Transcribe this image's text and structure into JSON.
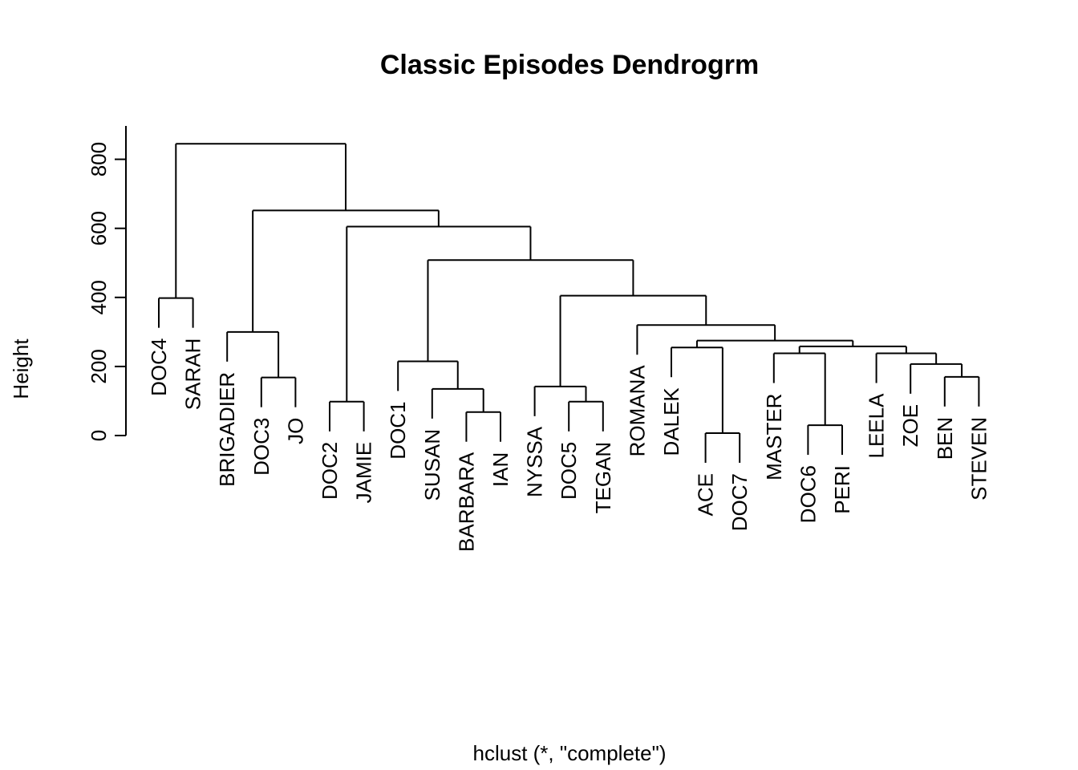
{
  "chart_data": {
    "type": "dendrogram",
    "title": "Classic Episodes Dendrogrm",
    "ylabel": "Height",
    "xlabel": "hclust (*, \"complete\")",
    "ylim": [
      0,
      900
    ],
    "yticks": [
      0,
      200,
      400,
      600,
      800
    ],
    "leaves": [
      "DOC4",
      "SARAH",
      "BRIGADIER",
      "DOC3",
      "JO",
      "DOC2",
      "JAMIE",
      "DOC1",
      "SUSAN",
      "BARBARA",
      "IAN",
      "NYSSA",
      "DOC5",
      "TEGAN",
      "ROMANA",
      "DALEK",
      "ACE",
      "DOC7",
      "MASTER",
      "DOC6",
      "PERI",
      "LEELA",
      "ZOE",
      "BEN",
      "STEVEN"
    ],
    "merges": [
      {
        "left": "BEN",
        "right": "STEVEN",
        "height": 170
      },
      {
        "left": "ZOE",
        "right": {
          "ref": 0
        },
        "height": 207
      },
      {
        "left": "LEELA",
        "right": {
          "ref": 1
        },
        "height": 238
      },
      {
        "left": "DOC6",
        "right": "PERI",
        "height": 30
      },
      {
        "left": "MASTER",
        "right": {
          "ref": 3
        },
        "height": 238
      },
      {
        "left": {
          "ref": 4
        },
        "right": {
          "ref": 2
        },
        "height": 258
      },
      {
        "left": "ACE",
        "right": "DOC7",
        "height": 7
      },
      {
        "left": "DALEK",
        "right": {
          "ref": 6
        },
        "height": 255
      },
      {
        "left": {
          "ref": 7
        },
        "right": {
          "ref": 5
        },
        "height": 275
      },
      {
        "left": "ROMANA",
        "right": {
          "ref": 8
        },
        "height": 320
      },
      {
        "left": "DOC5",
        "right": "TEGAN",
        "height": 98
      },
      {
        "left": "NYSSA",
        "right": {
          "ref": 10
        },
        "height": 142
      },
      {
        "left": {
          "ref": 11
        },
        "right": {
          "ref": 9
        },
        "height": 405
      },
      {
        "left": "BARBARA",
        "right": "IAN",
        "height": 68
      },
      {
        "left": "SUSAN",
        "right": {
          "ref": 13
        },
        "height": 135
      },
      {
        "left": "DOC1",
        "right": {
          "ref": 14
        },
        "height": 215
      },
      {
        "left": {
          "ref": 15
        },
        "right": {
          "ref": 12
        },
        "height": 508
      },
      {
        "left": "DOC2",
        "right": "JAMIE",
        "height": 98
      },
      {
        "left": {
          "ref": 17
        },
        "right": {
          "ref": 16
        },
        "height": 605
      },
      {
        "left": "DOC3",
        "right": "JO",
        "height": 168
      },
      {
        "left": "BRIGADIER",
        "right": {
          "ref": 19
        },
        "height": 300
      },
      {
        "left": {
          "ref": 20
        },
        "right": {
          "ref": 18
        },
        "height": 652
      },
      {
        "left": "DOC4",
        "right": "SARAH",
        "height": 398
      },
      {
        "left": {
          "ref": 22
        },
        "right": {
          "ref": 21
        },
        "height": 845
      }
    ]
  }
}
